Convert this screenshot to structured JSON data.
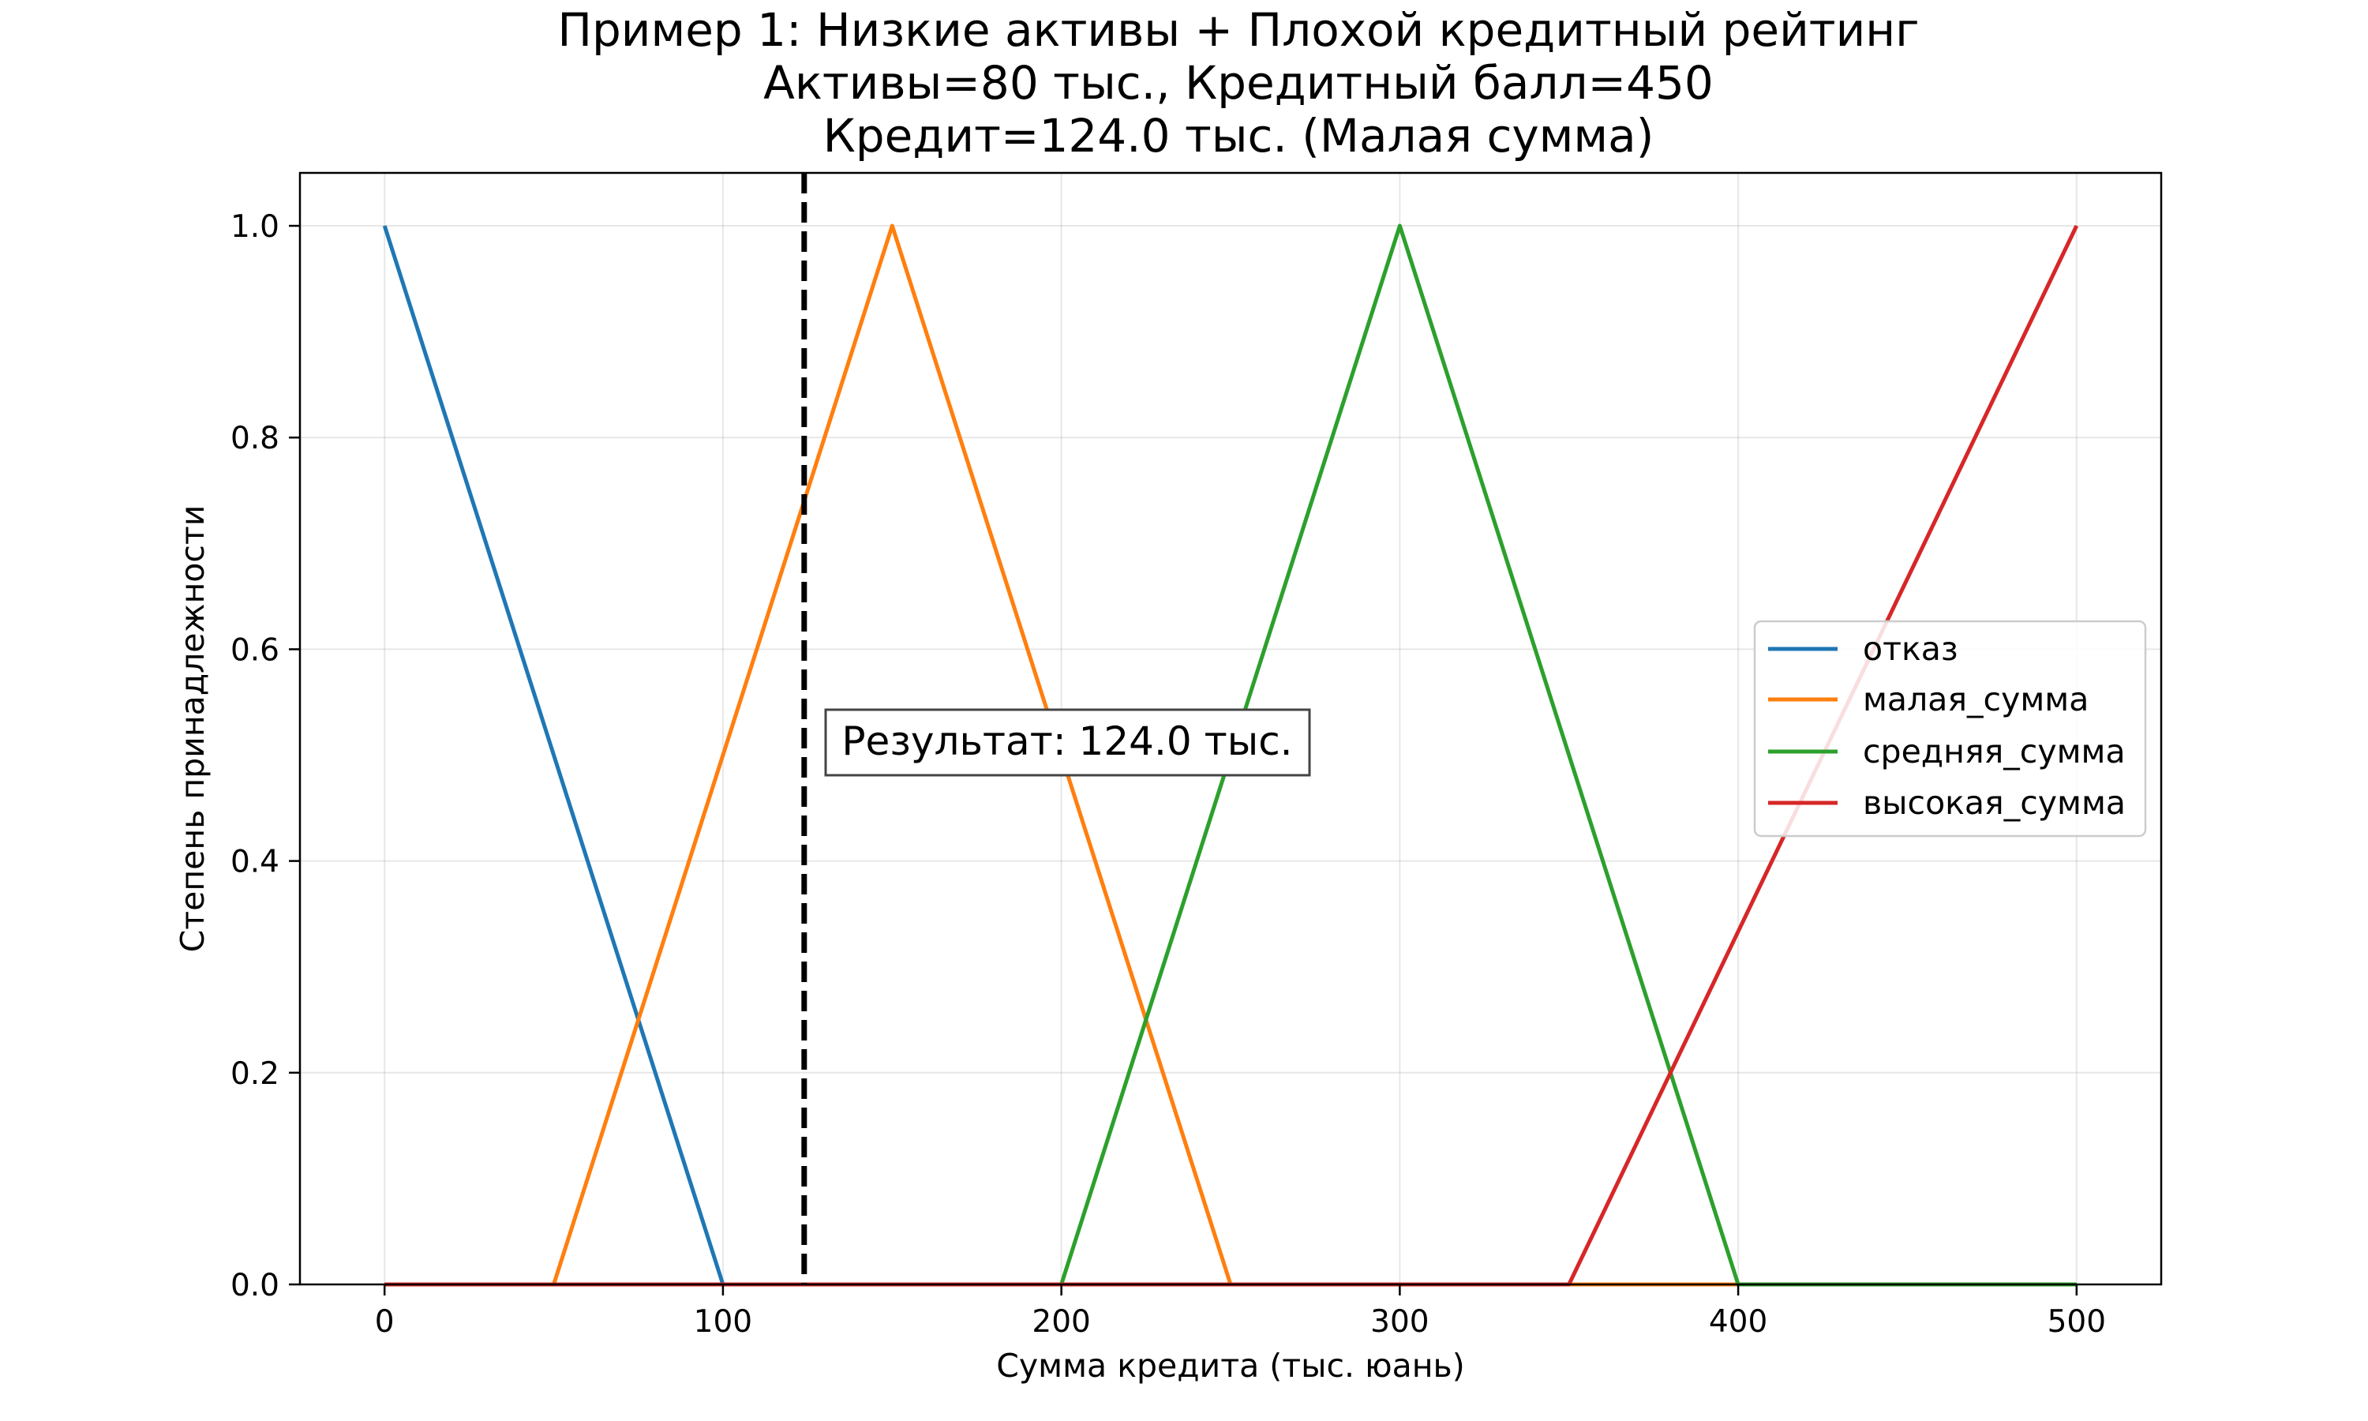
{
  "chart_data": {
    "type": "line",
    "title_lines": [
      "Пример 1: Низкие активы + Плохой кредитный рейтинг",
      "Активы=80 тыс., Кредитный балл=450",
      "Кредит=124.0 тыс. (Малая сумма)"
    ],
    "xlabel": "Сумма кредита (тыс. юань)",
    "ylabel": "Степень принадлежности",
    "xlim": [
      -25,
      525
    ],
    "ylim": [
      0,
      1.05
    ],
    "xticks": [
      0,
      100,
      200,
      300,
      400,
      500
    ],
    "xtick_labels": [
      "0",
      "100",
      "200",
      "300",
      "400",
      "500"
    ],
    "yticks": [
      0,
      0.2,
      0.4,
      0.6,
      0.8,
      1.0
    ],
    "ytick_labels": [
      "0.0",
      "0.2",
      "0.4",
      "0.6",
      "0.8",
      "1.0"
    ],
    "grid": true,
    "legend_position": "center-right",
    "series": [
      {
        "name": "отказ",
        "color": "#1f77b4",
        "x": [
          0,
          100,
          500
        ],
        "y": [
          1,
          0,
          0
        ]
      },
      {
        "name": "малая_сумма",
        "color": "#ff7f0e",
        "x": [
          0,
          50,
          150,
          250,
          500
        ],
        "y": [
          0,
          0,
          1,
          0,
          0
        ]
      },
      {
        "name": "средняя_сумма",
        "color": "#2ca02c",
        "x": [
          0,
          200,
          300,
          400,
          500
        ],
        "y": [
          0,
          0,
          1,
          0,
          0
        ]
      },
      {
        "name": "высокая_сумма",
        "color": "#d62728",
        "x": [
          0,
          350,
          500
        ],
        "y": [
          0,
          0,
          1
        ]
      }
    ],
    "result_line": {
      "x": 124.0,
      "color": "#000000",
      "style": "dashed"
    },
    "annotation": {
      "text": "Результат: 124.0 тыс.",
      "x": 132,
      "y": 0.51
    }
  }
}
